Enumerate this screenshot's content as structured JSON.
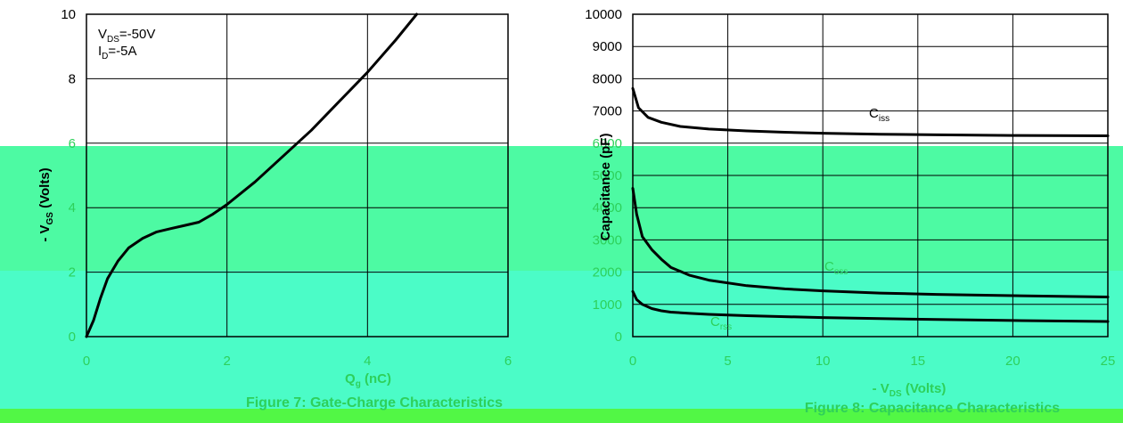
{
  "colors": {
    "band_top": "#4dfaa3",
    "band_middle": "#4bfcc7",
    "band_bottom": "#52f745",
    "axis": "#000000",
    "grid": "#000000",
    "curve": "#000000",
    "text": "#000000",
    "ghost_text": "#2ed05a"
  },
  "chart_data": [
    {
      "type": "line",
      "title": "Figure 7: Gate-Charge Characteristics",
      "xlabel": "Q",
      "xlabel_sub": "g",
      "xlabel_unit": "(nC)",
      "ylabel": "- V",
      "ylabel_sub": "GS",
      "ylabel_unit": "(Volts)",
      "xlim": [
        0,
        6
      ],
      "ylim": [
        0,
        10
      ],
      "x_ticks": [
        0,
        2,
        4,
        6
      ],
      "y_ticks": [
        0,
        2,
        4,
        6,
        8,
        10
      ],
      "grid": true,
      "annotations": [
        {
          "text": "V",
          "sub": "DS",
          "value": "=-50V"
        },
        {
          "text": "I",
          "sub": "D",
          "value": "=-5A"
        }
      ],
      "series": [
        {
          "x": [
            0,
            0.1,
            0.2,
            0.3,
            0.45,
            0.6,
            0.8,
            1.0,
            1.2,
            1.4,
            1.6,
            1.8,
            2.0,
            2.4,
            2.8,
            3.2,
            3.6,
            4.0,
            4.4,
            4.7
          ],
          "y": [
            0,
            0.5,
            1.2,
            1.8,
            2.35,
            2.75,
            3.05,
            3.25,
            3.35,
            3.45,
            3.55,
            3.8,
            4.1,
            4.8,
            5.6,
            6.4,
            7.3,
            8.2,
            9.2,
            10
          ]
        }
      ]
    },
    {
      "type": "line",
      "title": "Figure 8: Capacitance Characteristics",
      "xlabel": "- V",
      "xlabel_sub": "DS",
      "xlabel_unit": "(Volts)",
      "ylabel": "Capacitance (pF)",
      "xlim": [
        0,
        25
      ],
      "ylim": [
        0,
        10000
      ],
      "x_ticks": [
        0,
        5,
        10,
        15,
        20,
        25
      ],
      "y_ticks": [
        0,
        1000,
        2000,
        3000,
        4000,
        5000,
        6000,
        7000,
        8000,
        9000,
        10000
      ],
      "grid": true,
      "series": [
        {
          "name": "C",
          "name_sub": "iss",
          "x": [
            0,
            0.3,
            0.8,
            1.5,
            2.5,
            4,
            6,
            8,
            10,
            13,
            16,
            20,
            25
          ],
          "y": [
            7700,
            7100,
            6800,
            6650,
            6520,
            6440,
            6380,
            6340,
            6310,
            6280,
            6260,
            6240,
            6230
          ]
        },
        {
          "name": "C",
          "name_sub": "oss",
          "x": [
            0,
            0.2,
            0.5,
            1,
            1.5,
            2,
            3,
            4,
            6,
            8,
            10,
            13,
            16,
            20,
            25
          ],
          "y": [
            4600,
            3800,
            3100,
            2700,
            2400,
            2150,
            1900,
            1750,
            1580,
            1480,
            1420,
            1350,
            1310,
            1270,
            1230
          ]
        },
        {
          "name": "C",
          "name_sub": "rss",
          "x": [
            0,
            0.2,
            0.5,
            1,
            1.5,
            2,
            3,
            4,
            6,
            8,
            10,
            13,
            16,
            20,
            25
          ],
          "y": [
            1400,
            1150,
            1000,
            870,
            800,
            760,
            720,
            690,
            650,
            620,
            590,
            560,
            530,
            500,
            470
          ]
        }
      ]
    }
  ]
}
